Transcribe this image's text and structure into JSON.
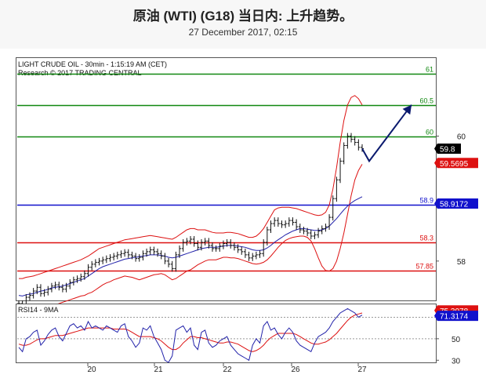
{
  "header": {
    "title": "原油 (WTI) (G18) 当日内: 上升趋势。",
    "subtitle": "27 December 2017, 02:15"
  },
  "chart_data": {
    "type": "line",
    "header_line1": "LIGHT CRUDE OIL - 30min - 1:15:19 AM (CET)",
    "header_line2": "Research © 2017 TRADING CENTRAL",
    "x_labels": [
      "20",
      "21",
      "22",
      "26",
      "27"
    ],
    "ylim": [
      57.37,
      61.25
    ],
    "y_ticks": [
      58,
      60
    ],
    "levels": [
      {
        "value": 61,
        "label": "61",
        "color": "#118811"
      },
      {
        "value": 60.5,
        "label": "60.5",
        "color": "#118811"
      },
      {
        "value": 60,
        "label": "60",
        "color": "#118811"
      },
      {
        "value": 58.9,
        "label": "58.9",
        "color": "#1111cc"
      },
      {
        "value": 58.3,
        "label": "58.3",
        "color": "#dd1111"
      },
      {
        "value": 57.85,
        "label": "57.85",
        "color": "#dd1111"
      }
    ],
    "price_tags": [
      {
        "value": "59.8",
        "y": 59.8,
        "bg": "#000000",
        "fg": "#ffffff"
      },
      {
        "value": "59.5695",
        "y": 59.57,
        "bg": "#dd1111",
        "fg": "#ffffff"
      },
      {
        "value": "58.9172",
        "y": 58.92,
        "bg": "#1111cc",
        "fg": "#ffffff"
      }
    ],
    "price": [
      57.32,
      57.28,
      57.42,
      57.45,
      57.52,
      57.58,
      57.48,
      57.5,
      57.55,
      57.6,
      57.62,
      57.58,
      57.55,
      57.6,
      57.66,
      57.7,
      57.72,
      57.75,
      57.8,
      57.9,
      57.95,
      57.98,
      58.0,
      58.02,
      58.04,
      58.06,
      58.08,
      58.1,
      58.12,
      58.14,
      58.1,
      58.08,
      58.04,
      58.06,
      58.12,
      58.15,
      58.18,
      58.15,
      58.12,
      58.08,
      58.0,
      57.95,
      57.88,
      58.1,
      58.2,
      58.3,
      58.32,
      58.35,
      58.28,
      58.22,
      58.3,
      58.32,
      58.25,
      58.2,
      58.2,
      58.24,
      58.28,
      58.3,
      58.25,
      58.22,
      58.18,
      58.15,
      58.1,
      58.05,
      58.08,
      58.1,
      58.12,
      58.3,
      58.5,
      58.6,
      58.65,
      58.6,
      58.58,
      58.6,
      58.65,
      58.62,
      58.55,
      58.5,
      58.48,
      58.45,
      58.4,
      58.42,
      58.48,
      58.52,
      58.55,
      58.7,
      59.0,
      59.3,
      59.6,
      59.85,
      60.0,
      59.95,
      59.9,
      59.82,
      59.8
    ],
    "sma": [
      57.45,
      57.44,
      57.46,
      57.47,
      57.48,
      57.5,
      57.52,
      57.53,
      57.55,
      57.57,
      57.58,
      57.59,
      57.6,
      57.62,
      57.64,
      57.66,
      57.68,
      57.7,
      57.72,
      57.76,
      57.8,
      57.84,
      57.88,
      57.91,
      57.93,
      57.95,
      57.97,
      57.99,
      58.01,
      58.03,
      58.04,
      58.05,
      58.06,
      58.07,
      58.08,
      58.09,
      58.1,
      58.1,
      58.1,
      58.09,
      58.08,
      58.06,
      58.05,
      58.06,
      58.08,
      58.1,
      58.12,
      58.14,
      58.16,
      58.18,
      58.2,
      58.21,
      58.22,
      58.22,
      58.22,
      58.23,
      58.24,
      58.25,
      58.25,
      58.25,
      58.24,
      58.23,
      58.22,
      58.2,
      58.18,
      58.17,
      58.17,
      58.18,
      58.21,
      58.25,
      58.3,
      58.34,
      58.38,
      58.42,
      58.45,
      58.48,
      58.5,
      58.52,
      58.52,
      58.51,
      58.5,
      58.49,
      58.49,
      58.5,
      58.52,
      58.56,
      58.62,
      58.68,
      58.75,
      58.82,
      58.88,
      58.93,
      58.97,
      59.0,
      59.03
    ],
    "bb_upper": [
      57.72,
      57.72,
      57.74,
      57.75,
      57.76,
      57.78,
      57.8,
      57.82,
      57.84,
      57.86,
      57.88,
      57.9,
      57.92,
      57.94,
      57.96,
      57.98,
      58.0,
      58.02,
      58.05,
      58.08,
      58.12,
      58.16,
      58.2,
      58.22,
      58.24,
      58.26,
      58.28,
      58.3,
      58.32,
      58.34,
      58.35,
      58.36,
      58.37,
      58.38,
      58.39,
      58.4,
      58.41,
      58.4,
      58.39,
      58.38,
      58.37,
      58.36,
      58.35,
      58.38,
      58.42,
      58.46,
      58.5,
      58.52,
      58.52,
      58.5,
      58.5,
      58.5,
      58.48,
      58.46,
      58.45,
      58.45,
      58.45,
      58.46,
      58.46,
      58.45,
      58.44,
      58.42,
      58.4,
      58.38,
      58.38,
      58.4,
      58.45,
      58.52,
      58.62,
      58.72,
      58.82,
      58.85,
      58.86,
      58.86,
      58.86,
      58.85,
      58.84,
      58.82,
      58.8,
      58.78,
      58.76,
      58.74,
      58.73,
      58.74,
      58.78,
      58.9,
      59.15,
      59.5,
      59.9,
      60.25,
      60.5,
      60.62,
      60.65,
      60.6,
      60.5
    ],
    "bb_lower": [
      57.3,
      57.22,
      57.2,
      57.19,
      57.2,
      57.22,
      57.24,
      57.25,
      57.26,
      57.28,
      57.3,
      57.32,
      57.34,
      57.36,
      57.38,
      57.4,
      57.42,
      57.44,
      57.45,
      57.48,
      57.5,
      57.54,
      57.58,
      57.62,
      57.65,
      57.67,
      57.7,
      57.72,
      57.74,
      57.76,
      57.75,
      57.74,
      57.72,
      57.7,
      57.72,
      57.74,
      57.76,
      57.78,
      57.79,
      57.8,
      57.78,
      57.74,
      57.7,
      57.72,
      57.76,
      57.8,
      57.84,
      57.86,
      57.9,
      57.94,
      57.97,
      58.0,
      58.02,
      58.02,
      58.02,
      58.04,
      58.06,
      58.06,
      58.05,
      58.05,
      58.04,
      58.02,
      58.0,
      57.98,
      57.96,
      57.95,
      57.96,
      57.98,
      58.02,
      58.08,
      58.15,
      58.22,
      58.28,
      58.33,
      58.36,
      58.38,
      58.39,
      58.4,
      58.4,
      58.38,
      58.32,
      58.2,
      58.05,
      57.92,
      57.85,
      57.84,
      57.88,
      58.0,
      58.2,
      58.45,
      58.75,
      59.05,
      59.3,
      59.45,
      59.55
    ],
    "arrow_path": [
      [
        60,
        59.8
      ],
      [
        65,
        59.6
      ],
      [
        95,
        60.5
      ]
    ],
    "rsi": {
      "label": "RSI14 - 9MA",
      "ylim": [
        28,
        82
      ],
      "y_ticks": [
        30,
        50,
        70
      ],
      "dotted": [
        50,
        70
      ],
      "rsi": [
        42,
        38,
        50,
        52,
        56,
        58,
        44,
        48,
        54,
        58,
        60,
        52,
        48,
        55,
        62,
        64,
        60,
        62,
        58,
        66,
        60,
        62,
        60,
        58,
        62,
        60,
        58,
        56,
        62,
        64,
        52,
        48,
        42,
        46,
        60,
        58,
        62,
        52,
        46,
        40,
        30,
        28,
        34,
        58,
        60,
        62,
        56,
        60,
        44,
        40,
        56,
        58,
        46,
        42,
        44,
        48,
        50,
        52,
        44,
        40,
        36,
        34,
        32,
        30,
        44,
        50,
        46,
        62,
        66,
        58,
        60,
        54,
        50,
        56,
        60,
        56,
        48,
        44,
        42,
        40,
        38,
        46,
        52,
        54,
        56,
        60,
        66,
        70,
        74,
        76,
        78,
        76,
        74,
        70,
        72
      ],
      "ma": [
        45,
        44,
        44,
        45,
        47,
        49,
        50,
        50,
        51,
        52,
        53,
        53,
        53,
        54,
        55,
        56,
        57,
        58,
        59,
        60,
        60,
        60,
        60,
        60,
        60,
        60,
        59,
        59,
        59,
        59,
        58,
        56,
        54,
        52,
        52,
        52,
        52,
        51,
        50,
        48,
        45,
        42,
        40,
        40,
        42,
        46,
        49,
        52,
        52,
        51,
        51,
        50,
        49,
        48,
        47,
        46,
        46,
        47,
        47,
        46,
        45,
        43,
        41,
        39,
        38,
        39,
        41,
        44,
        48,
        51,
        53,
        55,
        55,
        55,
        55,
        55,
        54,
        52,
        50,
        48,
        46,
        45,
        45,
        46,
        47,
        49,
        52,
        55,
        59,
        63,
        67,
        70,
        72,
        73,
        74
      ],
      "tags": [
        {
          "value": "75.3078",
          "y": 76.3,
          "bg": "#dd1111",
          "fg": "#ffffff"
        },
        {
          "value": "71.3174",
          "y": 71.3,
          "bg": "#1111cc",
          "fg": "#ffffff"
        }
      ]
    }
  }
}
